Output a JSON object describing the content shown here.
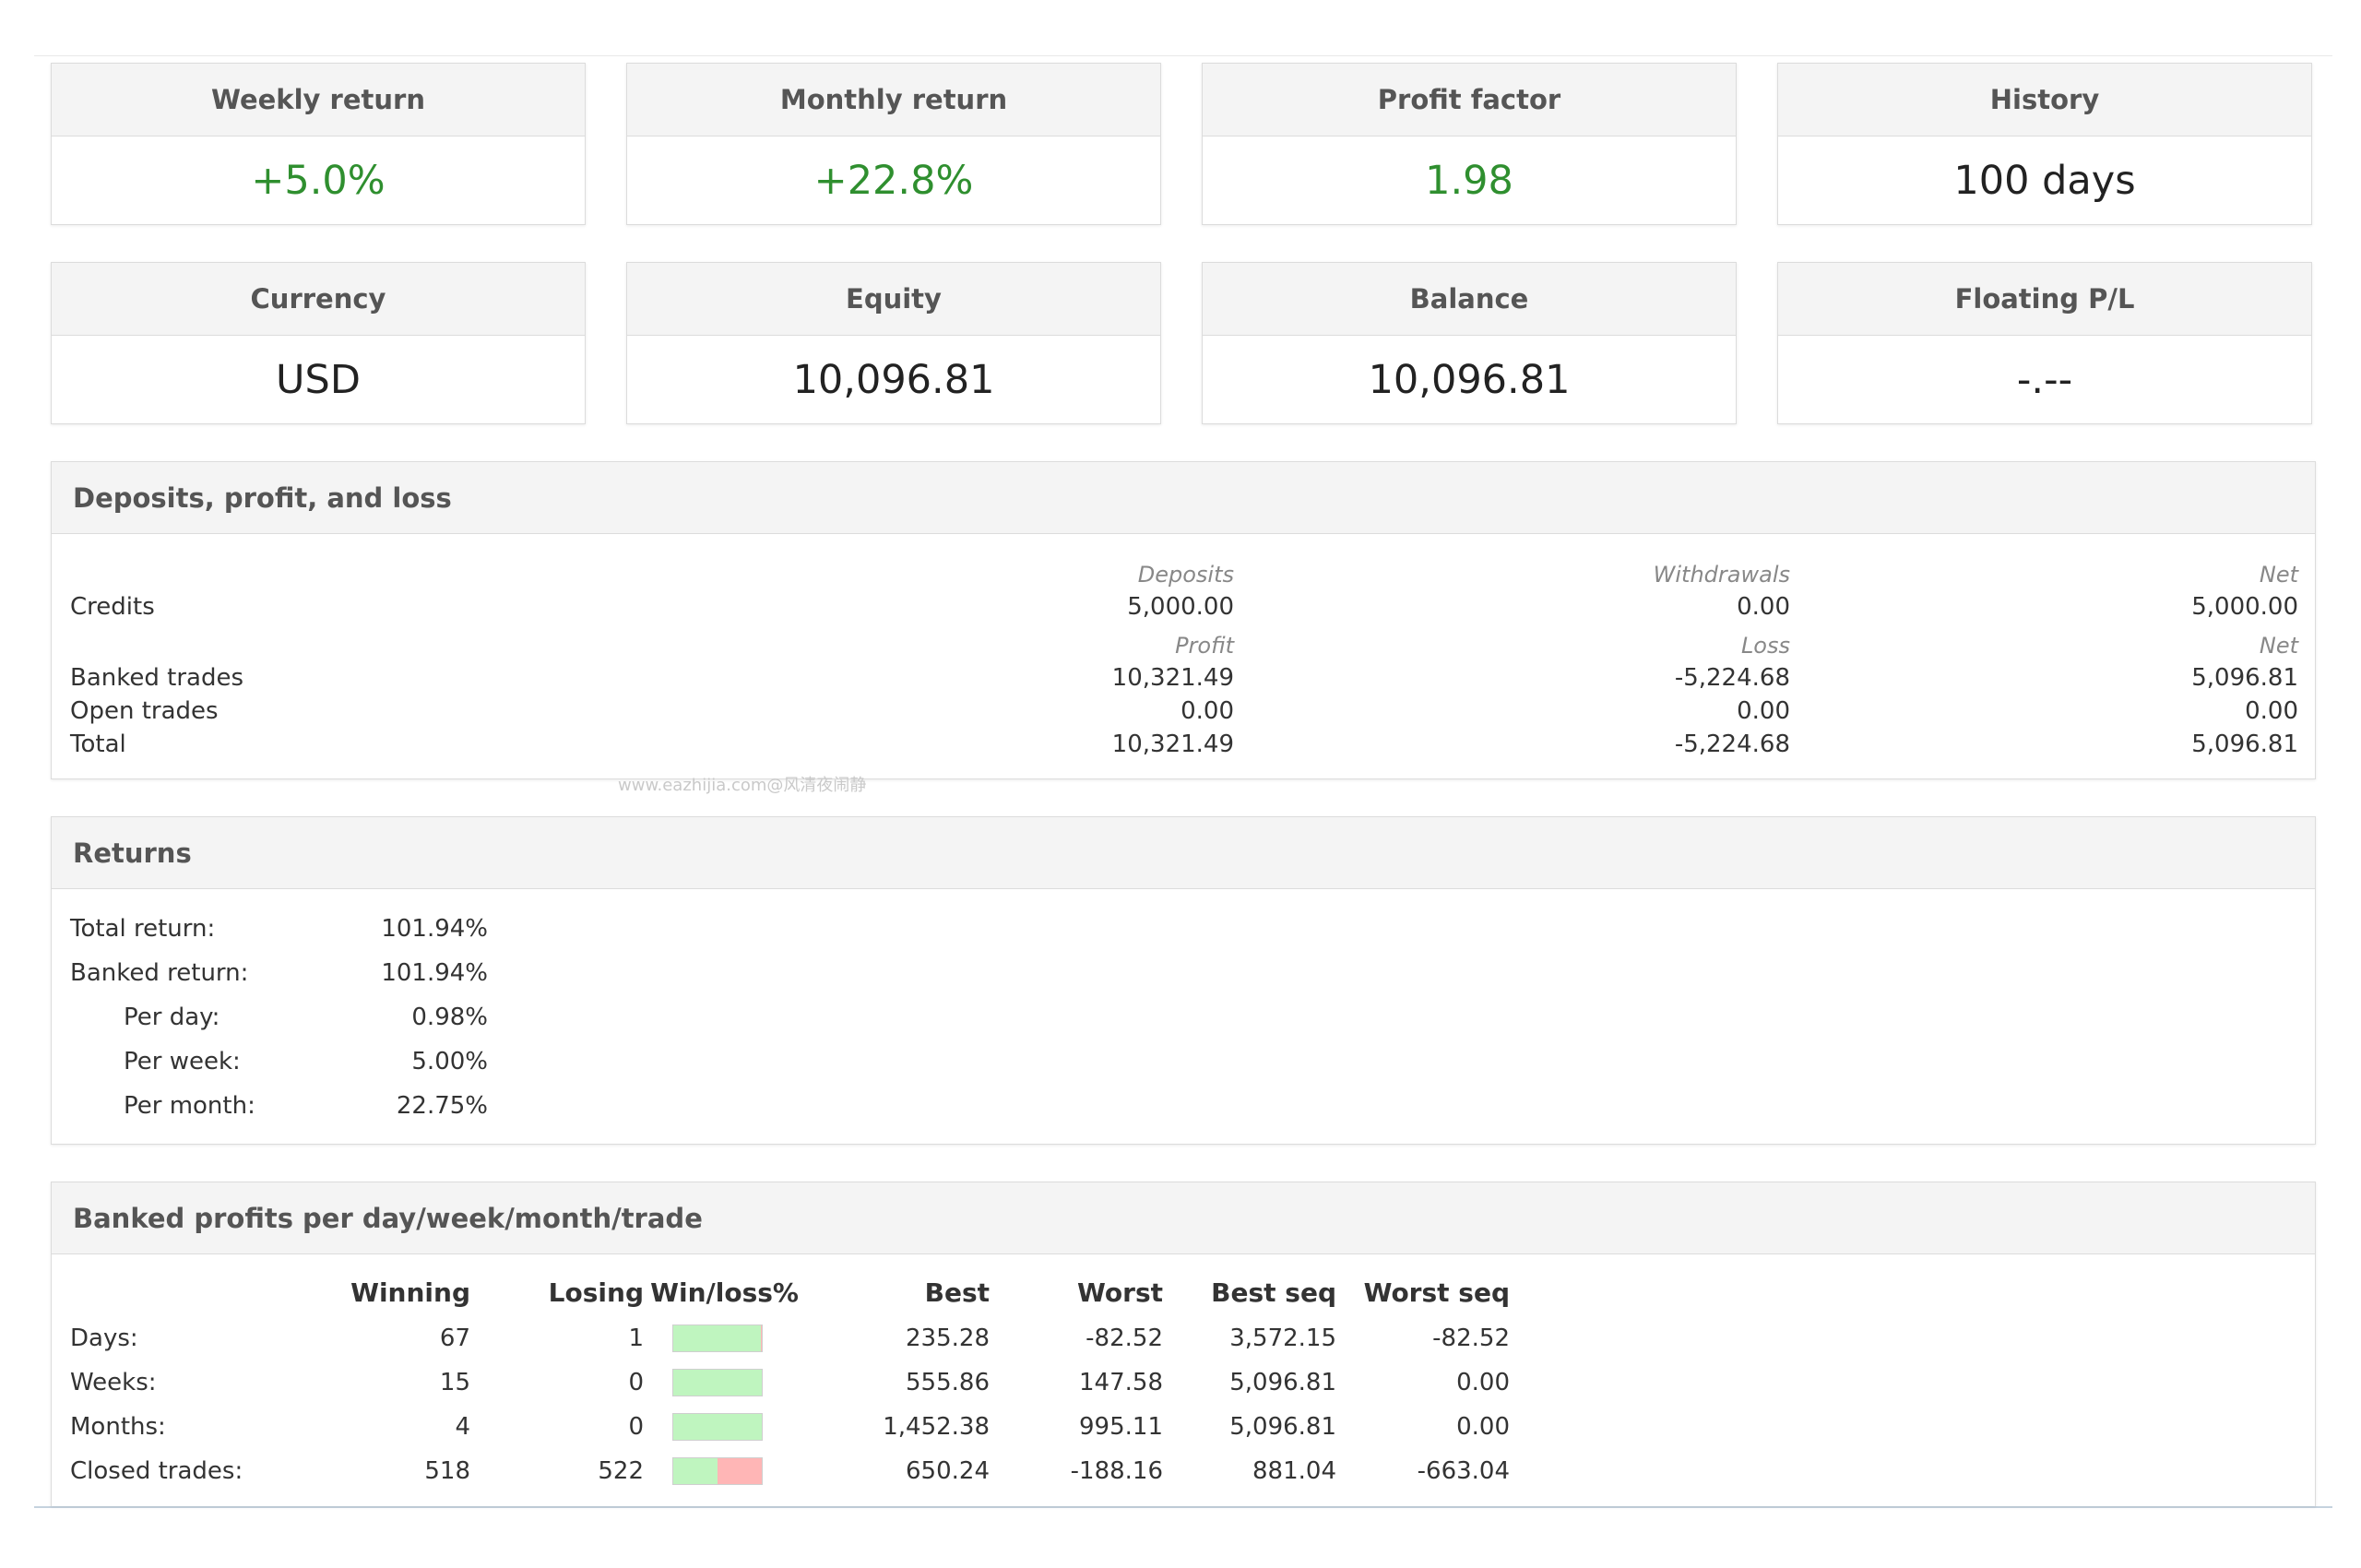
{
  "tiles": [
    {
      "label": "Weekly return",
      "value": "+5.0%",
      "positive": true
    },
    {
      "label": "Monthly return",
      "value": "+22.8%",
      "positive": true
    },
    {
      "label": "Profit factor",
      "value": "1.98",
      "positive": true
    },
    {
      "label": "History",
      "value": "100 days",
      "positive": false
    },
    {
      "label": "Currency",
      "value": "USD",
      "positive": false
    },
    {
      "label": "Equity",
      "value": "10,096.81",
      "positive": false
    },
    {
      "label": "Balance",
      "value": "10,096.81",
      "positive": false
    },
    {
      "label": "Floating P/L",
      "value": "-.--",
      "positive": false
    }
  ],
  "deposits": {
    "title": "Deposits, profit, and loss",
    "credit_headers": [
      "Deposits",
      "Withdrawals",
      "Net"
    ],
    "credits": {
      "label": "Credits",
      "values": [
        "5,000.00",
        "0.00",
        "5,000.00"
      ]
    },
    "trade_headers": [
      "Profit",
      "Loss",
      "Net"
    ],
    "banked": {
      "label": "Banked trades",
      "values": [
        "10,321.49",
        "-5,224.68",
        "5,096.81"
      ]
    },
    "open": {
      "label": "Open trades",
      "values": [
        "0.00",
        "0.00",
        "0.00"
      ]
    },
    "total": {
      "label": "Total",
      "values": [
        "10,321.49",
        "-5,224.68",
        "5,096.81"
      ]
    }
  },
  "watermark": "www.eazhijia.com@风清夜闹静",
  "returns": {
    "title": "Returns",
    "rows": [
      {
        "label": "Total return:",
        "value": "101.94%",
        "indent": false
      },
      {
        "label": "Banked return:",
        "value": "101.94%",
        "indent": false
      },
      {
        "label": "Per day:",
        "value": "0.98%",
        "indent": true
      },
      {
        "label": "Per week:",
        "value": "5.00%",
        "indent": true
      },
      {
        "label": "Per month:",
        "value": "22.75%",
        "indent": true
      }
    ]
  },
  "banked": {
    "title": "Banked profits per day/week/month/trade",
    "columns": [
      "Winning",
      "Losing",
      "Win/loss%",
      "Best",
      "Worst",
      "Best seq",
      "Worst seq"
    ],
    "rows": [
      {
        "label": "Days:",
        "winning": "67",
        "losing": "1",
        "win_fraction": 0.985,
        "best": "235.28",
        "worst": "-82.52",
        "best_seq": "3,572.15",
        "worst_seq": "-82.52"
      },
      {
        "label": "Weeks:",
        "winning": "15",
        "losing": "0",
        "win_fraction": 1.0,
        "best": "555.86",
        "worst": "147.58",
        "best_seq": "5,096.81",
        "worst_seq": "0.00"
      },
      {
        "label": "Months:",
        "winning": "4",
        "losing": "0",
        "win_fraction": 1.0,
        "best": "1,452.38",
        "worst": "995.11",
        "best_seq": "5,096.81",
        "worst_seq": "0.00"
      },
      {
        "label": "Closed trades:",
        "winning": "518",
        "losing": "522",
        "win_fraction": 0.498,
        "best": "650.24",
        "worst": "-188.16",
        "best_seq": "881.04",
        "worst_seq": "-663.04"
      }
    ]
  },
  "colors": {
    "positive": "#2f8f2f",
    "win_bar": "#bff5bf",
    "loss_bar": "#ffb6b6"
  }
}
